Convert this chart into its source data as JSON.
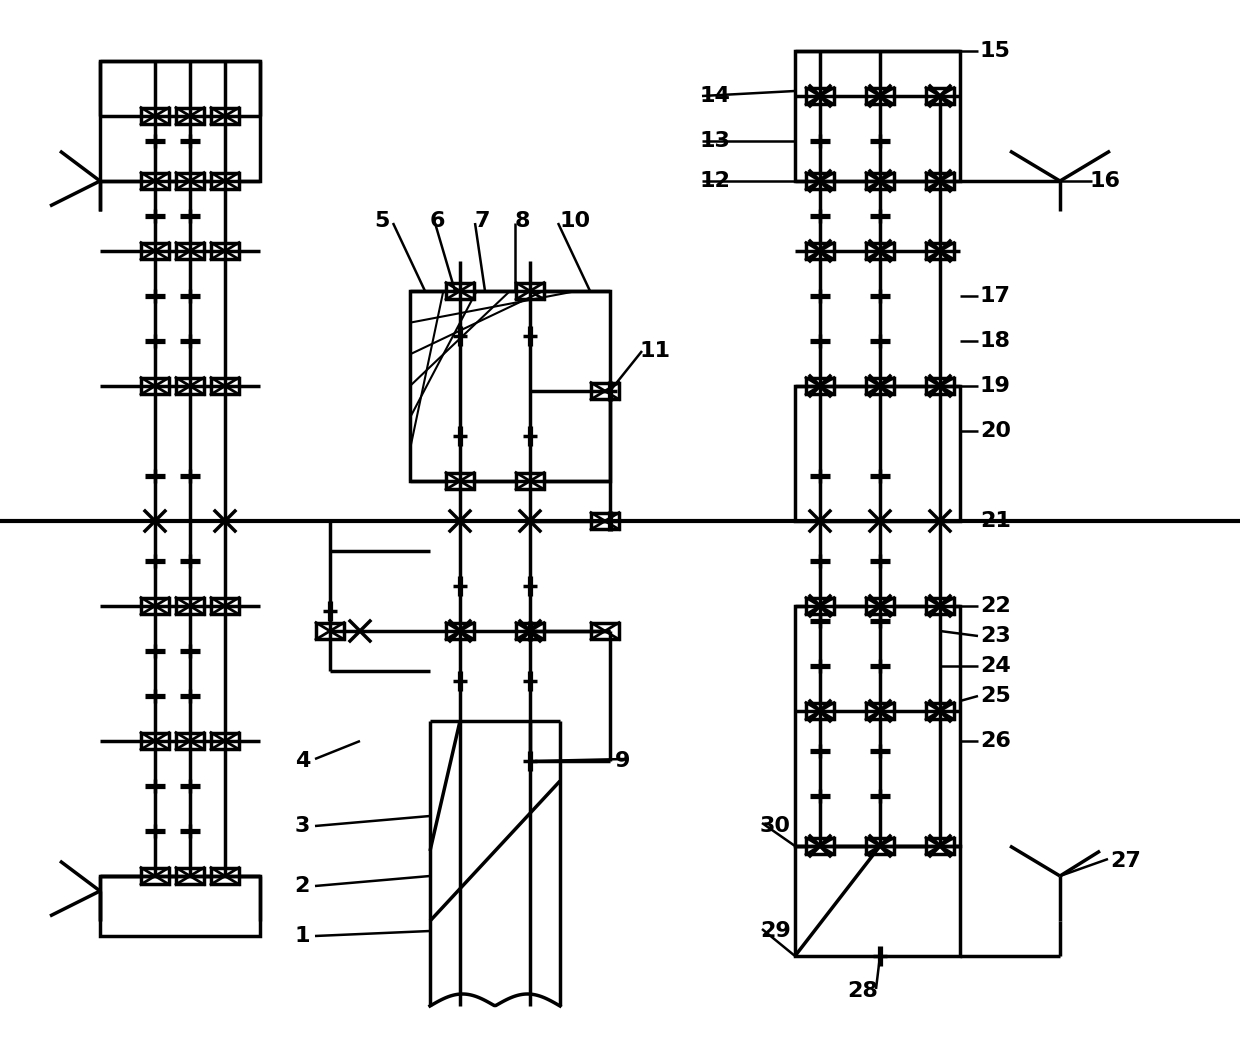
{
  "bg_color": "#ffffff",
  "line_color": "#000000",
  "lw": 2.5,
  "lw_thin": 1.5,
  "fs": 16,
  "figsize": [
    12.4,
    10.51
  ],
  "dpi": 100
}
